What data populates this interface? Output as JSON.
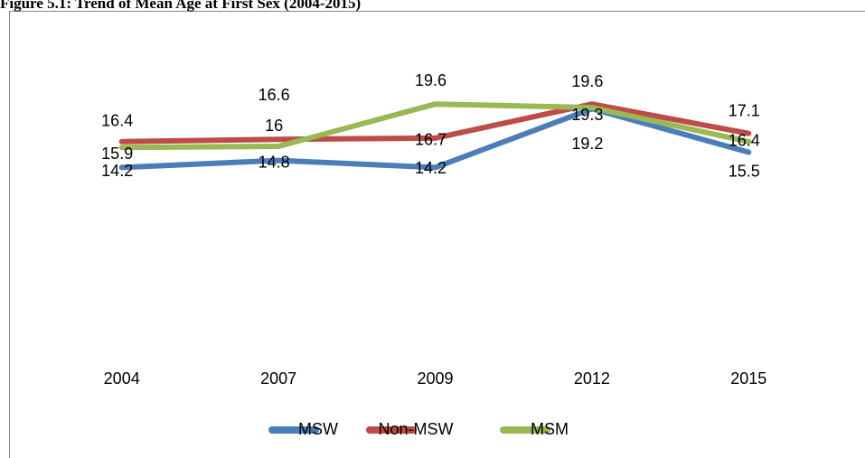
{
  "chart_data": {
    "type": "line",
    "title": "Figure 5.1: Trend of Mean Age at First Sex (2004-2015)",
    "categories": [
      "2004",
      "2007",
      "2009",
      "2012",
      "2015"
    ],
    "series": [
      {
        "name": "MSW",
        "color": "#4a7ebb",
        "values": [
          14.2,
          14.8,
          14.2,
          19.2,
          15.5
        ]
      },
      {
        "name": "Non-MSW",
        "color": "#be4b48",
        "values": [
          16.4,
          16.6,
          16.7,
          19.6,
          17.1
        ]
      },
      {
        "name": "MSM",
        "color": "#98b954",
        "values": [
          15.9,
          16,
          19.6,
          19.3,
          16.4
        ]
      }
    ],
    "ylim": [
      0,
      25
    ],
    "legend": "bottom"
  }
}
